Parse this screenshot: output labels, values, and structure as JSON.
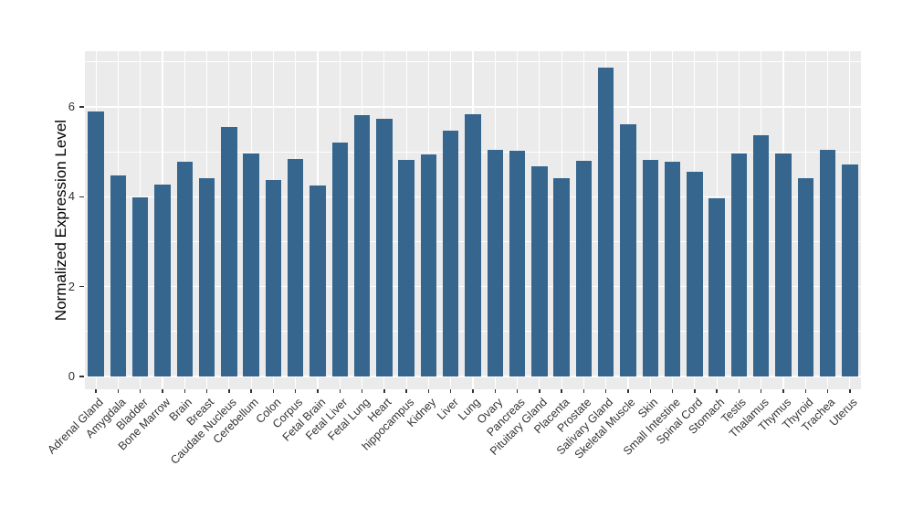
{
  "chart_data": {
    "type": "bar",
    "title": "",
    "xlabel": "",
    "ylabel": "Normalized Expression Level",
    "categories": [
      "Adrenal Gland",
      "Amygdala",
      "Bladder",
      "Bone Marrow",
      "Brain",
      "Breast",
      "Caudate Nucleus",
      "Cerebellum",
      "Colon",
      "Corpus",
      "Fetal Brain",
      "Fetal Liver",
      "Fetal Lung",
      "Heart",
      "hippocampus",
      "Kidney",
      "Liver",
      "Lung",
      "Ovary",
      "Pancreas",
      "Pituitary Gland",
      "Placenta",
      "Prostate",
      "Salivary Gland",
      "Skeletal Muscle",
      "Skin",
      "Small Intestine",
      "Spinal Cord",
      "Stomach",
      "Testis",
      "Thalamus",
      "Thymus",
      "Thyroid",
      "Trachea",
      "Uterus"
    ],
    "values": [
      5.9,
      4.48,
      3.98,
      4.28,
      4.77,
      4.42,
      5.55,
      4.96,
      4.38,
      4.84,
      4.26,
      5.21,
      5.82,
      5.74,
      4.82,
      4.95,
      5.48,
      5.84,
      5.04,
      5.02,
      4.68,
      4.42,
      4.79,
      6.88,
      5.62,
      4.82,
      4.78,
      4.56,
      3.96,
      4.97,
      5.37,
      4.97,
      4.42,
      5.05,
      4.72
    ],
    "yticks": [
      0,
      2,
      4,
      6
    ],
    "minor_yticks": [
      1,
      3,
      5,
      7
    ],
    "ylim": [
      -0.28,
      7.24
    ],
    "x_label_rotation_deg": 45,
    "grid": "on",
    "legend": "none",
    "bar_color": "#36668E",
    "panel_background": "#EBEBEB",
    "gridline_color": "#FFFFFF",
    "tick_color": "#333333"
  }
}
